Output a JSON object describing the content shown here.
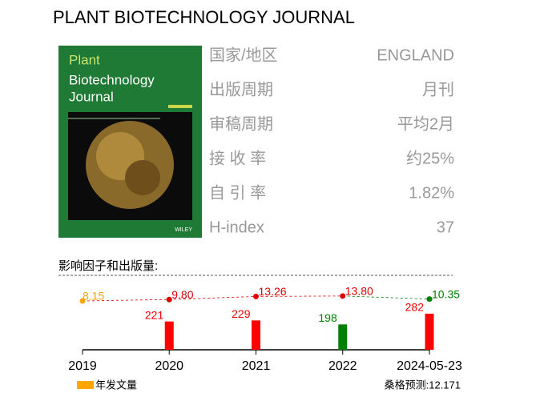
{
  "header": {
    "title": "PLANT BIOTECHNOLOGY JOURNAL"
  },
  "cover": {
    "lines": [
      "Plant",
      "Biotechnology",
      "Journal"
    ],
    "publisher": "WILEY"
  },
  "info": [
    {
      "label": "国家/地区",
      "value": "ENGLAND"
    },
    {
      "label": "出版周期",
      "value": "月刊"
    },
    {
      "label": "审稿周期",
      "value": "平均2月"
    },
    {
      "label": "接 收 率",
      "value": "约25%"
    },
    {
      "label": "自 引 率",
      "value": "1.82%"
    },
    {
      "label": "H-index",
      "value": "37"
    }
  ],
  "chart_data": {
    "type": "bar-line",
    "title": "影响因子和出版量:",
    "categories": [
      "2019",
      "2020",
      "2021",
      "2022",
      "2024-05-23"
    ],
    "series": [
      {
        "name": "年发文量",
        "color": "#ffa500",
        "bar_colors": [
          "#ff0000",
          "#ff0000",
          "#ff0000",
          "#008000",
          "#ff0000"
        ],
        "values": [
          null,
          221,
          229,
          198,
          282
        ]
      }
    ],
    "impact_factor": {
      "values": [
        8.15,
        9.8,
        13.26,
        13.8,
        10.35
      ],
      "value_labels": [
        "8.15",
        "9.80",
        "13.26",
        "13.80",
        "10.35"
      ],
      "colors": [
        "#ffa500",
        "#dd0000",
        "#dd0000",
        "#dd0000",
        "#008000"
      ]
    },
    "prediction": "桑格预测:12.171"
  }
}
